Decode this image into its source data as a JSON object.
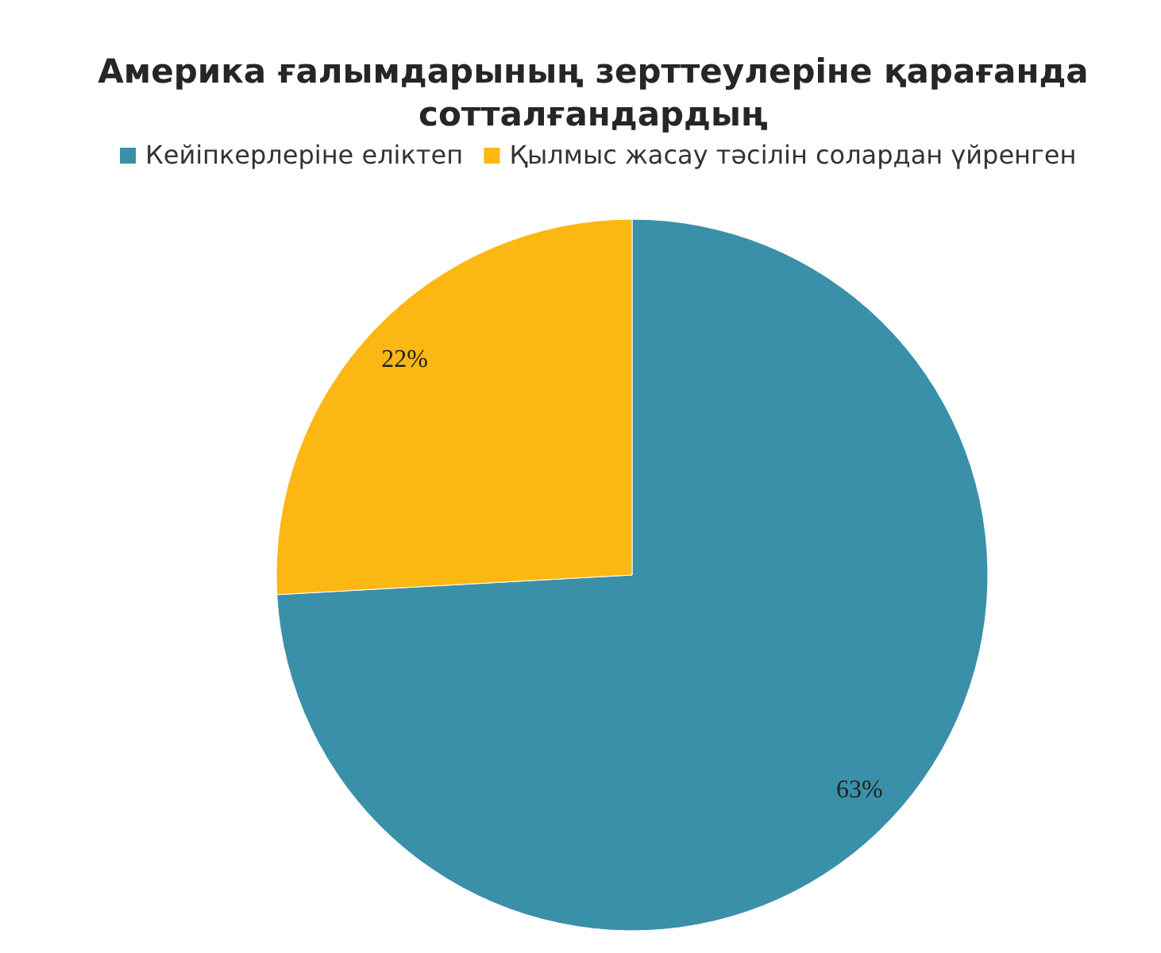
{
  "chart_data": {
    "type": "pie",
    "title": "Америка ғалымдарының зерттеулеріне қарағанда сотталғандардың",
    "categories": [
      "Кейіпкерлеріне еліктеп",
      "Қылмыс жасау тәсілін солардан үйренген"
    ],
    "values": [
      63,
      22
    ],
    "colors": [
      "#3a90a8",
      "#fcb712"
    ],
    "value_labels": [
      "63%",
      "22%"
    ],
    "legend": "top"
  }
}
